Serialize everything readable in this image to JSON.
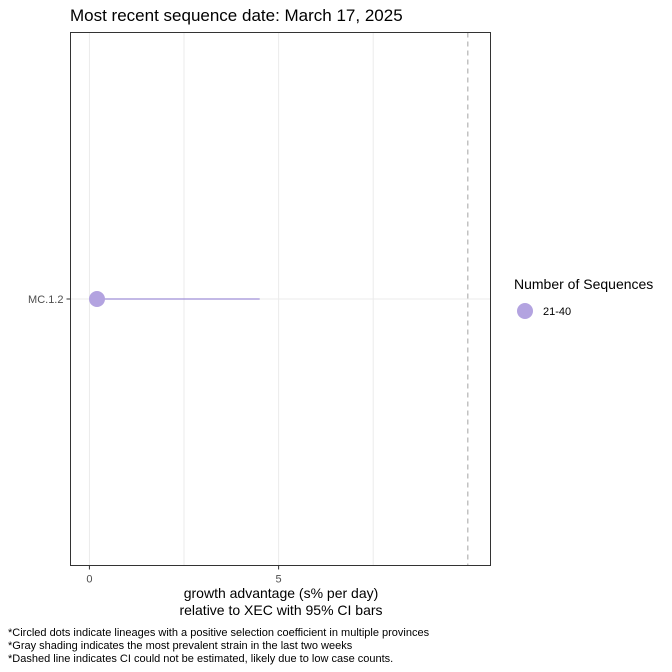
{
  "chart_data": {
    "type": "scatter",
    "title": "Most recent sequence date: March 17, 2025",
    "xlabel_line1": "growth advantage (s% per day)",
    "xlabel_line2": "relative to  XEC  with 95% CI bars",
    "ylabel": "",
    "xlim": [
      -0.5,
      10.6
    ],
    "x_ticks": [
      0,
      5
    ],
    "x_minor_gridlines": [
      2.5,
      7.5
    ],
    "categories": [
      "MC.1.2"
    ],
    "points": [
      {
        "lineage": "MC.1.2",
        "x": 0.2,
        "ci_low": 0.2,
        "ci_high": 4.5,
        "sequences_bin": "21-40"
      }
    ],
    "dashed_line_x": 10.0,
    "grid": true,
    "legend": {
      "title": "Number of Sequences",
      "position": "right",
      "items": [
        {
          "label": "21-40",
          "color": "#b3a3e0"
        }
      ]
    },
    "colors": {
      "point": "#b3a3e0",
      "ci_line": "#9f8fd6",
      "grid": "#ebebeb",
      "dashed": "#b3b3b3",
      "panel_border": "#333333"
    }
  },
  "footnotes": [
    "*Circled dots indicate lineages with a positive selection coefficient in multiple provinces",
    "*Gray shading indicates the most prevalent strain in the last two weeks",
    "*Dashed line indicates CI could not be estimated, likely due to low case counts."
  ]
}
